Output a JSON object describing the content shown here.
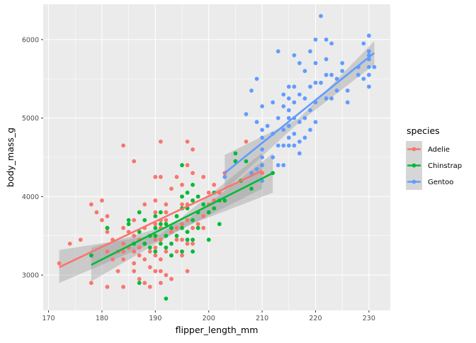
{
  "chart_data": {
    "type": "scatter",
    "xlabel": "flipper_length_mm",
    "ylabel": "body_mass_g",
    "xlim": [
      169,
      234
    ],
    "ylim": [
      2550,
      6450
    ],
    "x_major_ticks": [
      170,
      180,
      190,
      200,
      210,
      220,
      230
    ],
    "y_major_ticks": [
      3000,
      4000,
      5000,
      6000
    ],
    "x_tick_labels": [
      "170",
      "180",
      "190",
      "200",
      "210",
      "220",
      "230"
    ],
    "y_tick_labels": [
      "3000",
      "4000",
      "5000",
      "6000"
    ],
    "grid": true,
    "smoothing": "linear fit with confidence band",
    "legend": {
      "title": "species",
      "placement": "right",
      "entries": [
        "Adelie",
        "Chinstrap",
        "Gentoo"
      ]
    },
    "colors": {
      "panel": "#EBEBEB",
      "grid": "#FFFFFF",
      "band": "#999999"
    },
    "series": [
      {
        "name": "Adelie",
        "color": "#F8766D",
        "fit": {
          "x": [
            172,
            210
          ],
          "y": [
            3100,
            4330
          ]
        },
        "band": {
          "upper": [
            3320,
            3520,
            4560
          ],
          "lower": [
            2900,
            3450,
            4100
          ],
          "x": [
            172,
            191,
            210
          ]
        },
        "points": [
          [
            172,
            3150
          ],
          [
            174,
            3400
          ],
          [
            176,
            3450
          ],
          [
            178,
            3900
          ],
          [
            178,
            3250
          ],
          [
            178,
            2900
          ],
          [
            179,
            3800
          ],
          [
            180,
            3950
          ],
          [
            180,
            3700
          ],
          [
            181,
            3750
          ],
          [
            181,
            3600
          ],
          [
            181,
            3550
          ],
          [
            181,
            3300
          ],
          [
            181,
            2850
          ],
          [
            182,
            3200
          ],
          [
            182,
            3450
          ],
          [
            183,
            3300
          ],
          [
            183,
            3050
          ],
          [
            184,
            4650
          ],
          [
            184,
            3600
          ],
          [
            184,
            3400
          ],
          [
            184,
            3300
          ],
          [
            184,
            3200
          ],
          [
            184,
            2850
          ],
          [
            185,
            3550
          ],
          [
            185,
            3350
          ],
          [
            186,
            4450
          ],
          [
            186,
            3700
          ],
          [
            186,
            3500
          ],
          [
            186,
            3300
          ],
          [
            186,
            3150
          ],
          [
            186,
            3050
          ],
          [
            187,
            3800
          ],
          [
            187,
            3450
          ],
          [
            187,
            3350
          ],
          [
            187,
            3250
          ],
          [
            187,
            2950
          ],
          [
            188,
            3900
          ],
          [
            188,
            3600
          ],
          [
            188,
            3400
          ],
          [
            188,
            3200
          ],
          [
            188,
            2900
          ],
          [
            189,
            3500
          ],
          [
            189,
            3300
          ],
          [
            189,
            3100
          ],
          [
            189,
            2850
          ],
          [
            190,
            4250
          ],
          [
            190,
            3950
          ],
          [
            190,
            3800
          ],
          [
            190,
            3650
          ],
          [
            190,
            3500
          ],
          [
            190,
            3450
          ],
          [
            190,
            3350
          ],
          [
            190,
            3250
          ],
          [
            190,
            3050
          ],
          [
            191,
            4700
          ],
          [
            191,
            4250
          ],
          [
            191,
            3700
          ],
          [
            191,
            3600
          ],
          [
            191,
            3450
          ],
          [
            191,
            3200
          ],
          [
            191,
            3050
          ],
          [
            191,
            2900
          ],
          [
            192,
            3900
          ],
          [
            192,
            3800
          ],
          [
            192,
            3700
          ],
          [
            192,
            3300
          ],
          [
            192,
            3000
          ],
          [
            193,
            4100
          ],
          [
            193,
            3550
          ],
          [
            193,
            3400
          ],
          [
            193,
            3250
          ],
          [
            193,
            2950
          ],
          [
            194,
            4250
          ],
          [
            194,
            3750
          ],
          [
            194,
            3600
          ],
          [
            194,
            3450
          ],
          [
            194,
            3300
          ],
          [
            195,
            4150
          ],
          [
            195,
            4000
          ],
          [
            195,
            3900
          ],
          [
            195,
            3650
          ],
          [
            195,
            3450
          ],
          [
            195,
            3250
          ],
          [
            196,
            4700
          ],
          [
            196,
            4400
          ],
          [
            196,
            3900
          ],
          [
            196,
            3700
          ],
          [
            196,
            3550
          ],
          [
            196,
            3400
          ],
          [
            196,
            3050
          ],
          [
            197,
            4600
          ],
          [
            197,
            4300
          ],
          [
            197,
            3950
          ],
          [
            197,
            3600
          ],
          [
            197,
            3400
          ],
          [
            198,
            4000
          ],
          [
            198,
            3800
          ],
          [
            198,
            3650
          ],
          [
            199,
            4250
          ],
          [
            199,
            3750
          ],
          [
            199,
            3600
          ],
          [
            200,
            4050
          ],
          [
            200,
            3900
          ],
          [
            201,
            4150
          ],
          [
            201,
            3950
          ],
          [
            202,
            4050
          ],
          [
            203,
            4300
          ],
          [
            205,
            4450
          ],
          [
            207,
            4700
          ],
          [
            208,
            4300
          ],
          [
            210,
            4300
          ]
        ]
      },
      {
        "name": "Chinstrap",
        "color": "#00BA38",
        "fit": {
          "x": [
            178,
            212
          ],
          "y": [
            3130,
            4300
          ]
        },
        "band": {
          "upper": [
            3350,
            3700,
            4550
          ],
          "lower": [
            2920,
            3630,
            4050
          ],
          "x": [
            178,
            196,
            212
          ]
        },
        "points": [
          [
            178,
            3250
          ],
          [
            181,
            3600
          ],
          [
            185,
            3650
          ],
          [
            185,
            3700
          ],
          [
            186,
            3400
          ],
          [
            187,
            2900
          ],
          [
            187,
            3550
          ],
          [
            187,
            3800
          ],
          [
            188,
            3400
          ],
          [
            188,
            3700
          ],
          [
            189,
            3350
          ],
          [
            189,
            3500
          ],
          [
            190,
            3300
          ],
          [
            190,
            3500
          ],
          [
            190,
            3600
          ],
          [
            190,
            3750
          ],
          [
            191,
            3400
          ],
          [
            191,
            3650
          ],
          [
            191,
            3800
          ],
          [
            192,
            2700
          ],
          [
            192,
            3350
          ],
          [
            192,
            3500
          ],
          [
            192,
            3650
          ],
          [
            193,
            3250
          ],
          [
            193,
            3400
          ],
          [
            193,
            3600
          ],
          [
            194,
            3500
          ],
          [
            194,
            3750
          ],
          [
            195,
            3300
          ],
          [
            195,
            3600
          ],
          [
            195,
            3850
          ],
          [
            195,
            4000
          ],
          [
            195,
            4400
          ],
          [
            196,
            3450
          ],
          [
            196,
            3550
          ],
          [
            196,
            3850
          ],
          [
            196,
            4050
          ],
          [
            197,
            3300
          ],
          [
            197,
            3450
          ],
          [
            197,
            3700
          ],
          [
            197,
            3950
          ],
          [
            197,
            4150
          ],
          [
            198,
            3600
          ],
          [
            198,
            3800
          ],
          [
            198,
            4000
          ],
          [
            199,
            3900
          ],
          [
            200,
            3450
          ],
          [
            200,
            3800
          ],
          [
            201,
            3850
          ],
          [
            201,
            4050
          ],
          [
            202,
            3650
          ],
          [
            202,
            3950
          ],
          [
            203,
            3950
          ],
          [
            205,
            4450
          ],
          [
            205,
            4550
          ],
          [
            206,
            4200
          ],
          [
            207,
            4450
          ],
          [
            208,
            4100
          ],
          [
            210,
            4400
          ],
          [
            212,
            4300
          ]
        ]
      },
      {
        "name": "Gentoo",
        "color": "#619CFF",
        "fit": {
          "x": [
            203,
            231
          ],
          "y": [
            4300,
            5830
          ]
        },
        "band": {
          "upper": [
            4530,
            5000,
            5980
          ],
          "lower": [
            4080,
            4950,
            5680
          ],
          "x": [
            203,
            217,
            231
          ]
        },
        "points": [
          [
            203,
            4250
          ],
          [
            207,
            5050
          ],
          [
            208,
            5350
          ],
          [
            208,
            4300
          ],
          [
            209,
            4350
          ],
          [
            209,
            5500
          ],
          [
            209,
            4950
          ],
          [
            210,
            4600
          ],
          [
            210,
            4400
          ],
          [
            210,
            4200
          ],
          [
            210,
            4850
          ],
          [
            210,
            5150
          ],
          [
            210,
            4750
          ],
          [
            210,
            4500
          ],
          [
            211,
            4900
          ],
          [
            212,
            4800
          ],
          [
            212,
            5200
          ],
          [
            212,
            4500
          ],
          [
            213,
            4650
          ],
          [
            213,
            4400
          ],
          [
            213,
            5850
          ],
          [
            213,
            5000
          ],
          [
            214,
            4650
          ],
          [
            214,
            5300
          ],
          [
            214,
            4850
          ],
          [
            214,
            5150
          ],
          [
            214,
            4400
          ],
          [
            215,
            5400
          ],
          [
            215,
            5100
          ],
          [
            215,
            4900
          ],
          [
            215,
            4750
          ],
          [
            215,
            4650
          ],
          [
            215,
            5000
          ],
          [
            215,
            5250
          ],
          [
            216,
            5000
          ],
          [
            216,
            4650
          ],
          [
            216,
            5800
          ],
          [
            216,
            5400
          ],
          [
            216,
            5200
          ],
          [
            216,
            4800
          ],
          [
            217,
            5700
          ],
          [
            217,
            5300
          ],
          [
            217,
            4950
          ],
          [
            217,
            4700
          ],
          [
            217,
            4550
          ],
          [
            218,
            5000
          ],
          [
            218,
            5600
          ],
          [
            218,
            5250
          ],
          [
            218,
            4750
          ],
          [
            219,
            5850
          ],
          [
            219,
            5400
          ],
          [
            219,
            5100
          ],
          [
            219,
            4850
          ],
          [
            220,
            6000
          ],
          [
            220,
            5700
          ],
          [
            220,
            5450
          ],
          [
            220,
            5200
          ],
          [
            220,
            4950
          ],
          [
            221,
            6300
          ],
          [
            221,
            5450
          ],
          [
            222,
            5750
          ],
          [
            222,
            5550
          ],
          [
            222,
            6000
          ],
          [
            222,
            5250
          ],
          [
            223,
            5950
          ],
          [
            223,
            5550
          ],
          [
            223,
            5250
          ],
          [
            224,
            5500
          ],
          [
            224,
            5350
          ],
          [
            225,
            5600
          ],
          [
            225,
            5700
          ],
          [
            226,
            5200
          ],
          [
            226,
            5350
          ],
          [
            228,
            5550
          ],
          [
            228,
            5650
          ],
          [
            229,
            5950
          ],
          [
            229,
            5500
          ],
          [
            230,
            6050
          ],
          [
            230,
            5850
          ],
          [
            230,
            5800
          ],
          [
            230,
            5650
          ],
          [
            230,
            5550
          ],
          [
            230,
            5750
          ],
          [
            230,
            5400
          ],
          [
            231,
            5650
          ]
        ]
      }
    ]
  }
}
